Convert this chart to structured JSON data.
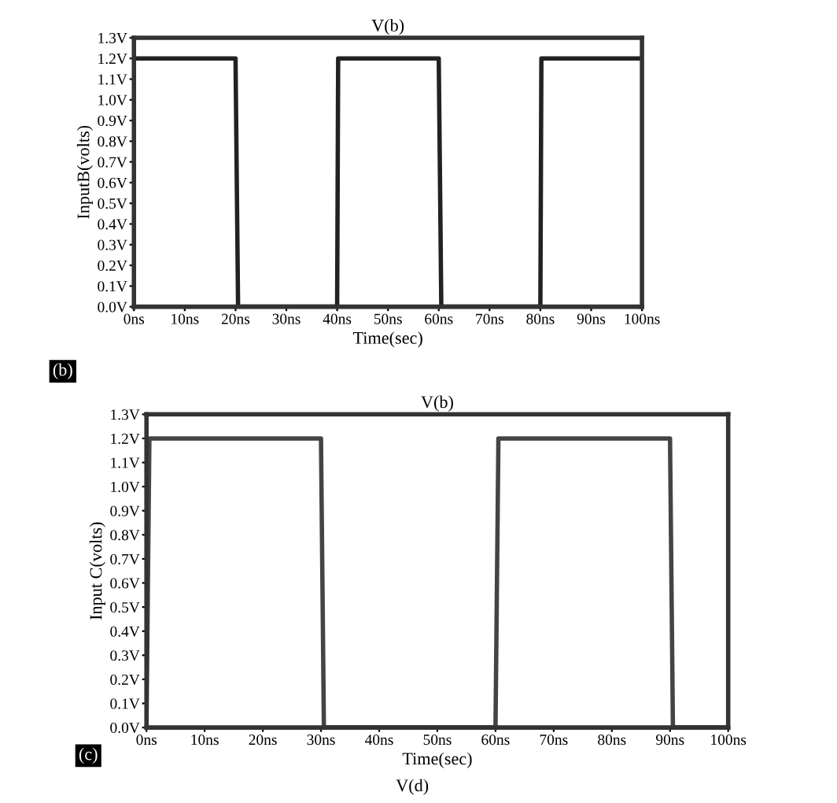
{
  "chart_data": [
    {
      "type": "line",
      "title": "V(b)",
      "xlabel": "Time(sec)",
      "ylabel": "InputB(volts)",
      "series": [
        {
          "color": "#222222",
          "x": [
            0,
            0,
            20,
            20.5,
            40,
            40.2,
            60,
            60.5,
            80,
            80.2,
            100
          ],
          "values": [
            0,
            1.2,
            1.2,
            0,
            0,
            1.2,
            1.2,
            0,
            0,
            1.2,
            1.2
          ]
        }
      ],
      "xlim": [
        0,
        100
      ],
      "ylim": [
        0,
        1.3
      ],
      "xticks": [
        {
          "value": 0,
          "label": "0ns"
        },
        {
          "value": 10,
          "label": "10ns"
        },
        {
          "value": 20,
          "label": "20ns"
        },
        {
          "value": 30,
          "label": "30ns"
        },
        {
          "value": 40,
          "label": "40ns"
        },
        {
          "value": 50,
          "label": "50ns"
        },
        {
          "value": 60,
          "label": "60ns"
        },
        {
          "value": 70,
          "label": "70ns"
        },
        {
          "value": 80,
          "label": "80ns"
        },
        {
          "value": 90,
          "label": "90ns"
        },
        {
          "value": 100,
          "label": "100ns"
        }
      ],
      "yticks": [
        {
          "value": 0,
          "label": "0.0V"
        },
        {
          "value": 0.1,
          "label": "0.1V"
        },
        {
          "value": 0.2,
          "label": "0.2V"
        },
        {
          "value": 0.3,
          "label": "0.3V"
        },
        {
          "value": 0.4,
          "label": "0.4V"
        },
        {
          "value": 0.5,
          "label": "0.5V"
        },
        {
          "value": 0.6,
          "label": "0.6V"
        },
        {
          "value": 0.7,
          "label": "0.7V"
        },
        {
          "value": 0.8,
          "label": "0.8V"
        },
        {
          "value": 0.9,
          "label": "0.9V"
        },
        {
          "value": 1.0,
          "label": "1.0V"
        },
        {
          "value": 1.1,
          "label": "1.1V"
        },
        {
          "value": 1.2,
          "label": "1.2V"
        },
        {
          "value": 1.3,
          "label": "1.3V"
        }
      ],
      "annotations": [
        "(b)"
      ]
    },
    {
      "type": "line",
      "title": "V(b)",
      "xlabel": "Time(sec)",
      "ylabel": "Input C(volts)",
      "series": [
        {
          "color": "#444444",
          "x": [
            0,
            0.5,
            30,
            30.5,
            60,
            60.5,
            90,
            90.5,
            100
          ],
          "values": [
            0,
            1.2,
            1.2,
            0,
            0,
            1.2,
            1.2,
            0,
            0
          ]
        }
      ],
      "xlim": [
        0,
        100
      ],
      "ylim": [
        0,
        1.3
      ],
      "xticks": [
        {
          "value": 0,
          "label": "0ns"
        },
        {
          "value": 10,
          "label": "10ns"
        },
        {
          "value": 20,
          "label": "20ns"
        },
        {
          "value": 30,
          "label": "30ns"
        },
        {
          "value": 40,
          "label": "40ns"
        },
        {
          "value": 50,
          "label": "50ns"
        },
        {
          "value": 60,
          "label": "60ns"
        },
        {
          "value": 70,
          "label": "70ns"
        },
        {
          "value": 80,
          "label": "80ns"
        },
        {
          "value": 90,
          "label": "90ns"
        },
        {
          "value": 100,
          "label": "100ns"
        }
      ],
      "yticks": [
        {
          "value": 0,
          "label": "0.0V"
        },
        {
          "value": 0.1,
          "label": "0.1V"
        },
        {
          "value": 0.2,
          "label": "0.2V"
        },
        {
          "value": 0.3,
          "label": "0.3V"
        },
        {
          "value": 0.4,
          "label": "0.4V"
        },
        {
          "value": 0.5,
          "label": "0.5V"
        },
        {
          "value": 0.6,
          "label": "0.6V"
        },
        {
          "value": 0.7,
          "label": "0.7V"
        },
        {
          "value": 0.8,
          "label": "0.8V"
        },
        {
          "value": 0.9,
          "label": "0.9V"
        },
        {
          "value": 1.0,
          "label": "1.0V"
        },
        {
          "value": 1.1,
          "label": "1.1V"
        },
        {
          "value": 1.2,
          "label": "1.2V"
        },
        {
          "value": 1.3,
          "label": "1.3V"
        }
      ],
      "annotations": [
        "(c)",
        "V(d)"
      ]
    }
  ]
}
